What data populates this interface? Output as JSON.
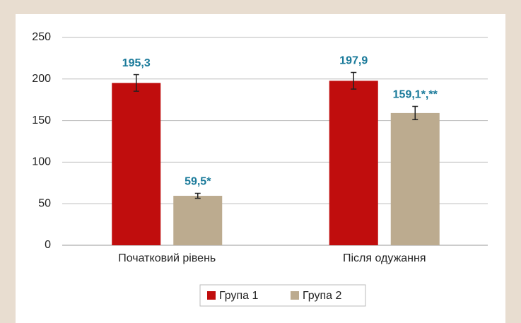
{
  "chart_data": {
    "type": "bar",
    "categories": [
      "Початковий рівень",
      "Після одужання"
    ],
    "series": [
      {
        "name": "Група 1",
        "color": "#c00d0d",
        "values": [
          195.3,
          197.9
        ],
        "errors": [
          10,
          10
        ],
        "value_labels": [
          "195,3",
          "197,9"
        ]
      },
      {
        "name": "Група 2",
        "color": "#bcab8f",
        "values": [
          59.5,
          159.1
        ],
        "errors": [
          3,
          8
        ],
        "value_labels": [
          "59,5*",
          "159,1*,**"
        ]
      }
    ],
    "ylim": [
      0,
      250
    ],
    "yticks": [
      0,
      50,
      100,
      150,
      200,
      250
    ],
    "grid": true,
    "legend": "bottom"
  }
}
